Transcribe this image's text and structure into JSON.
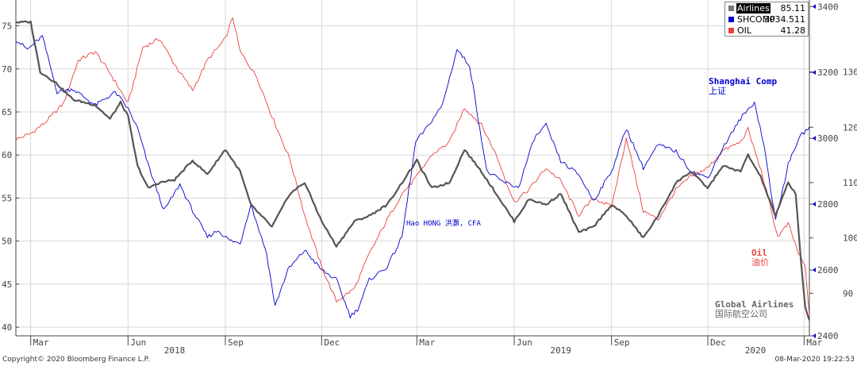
{
  "footer": {
    "copyright": "Copyright© 2020 Bloomberg Finance L.P.",
    "timestamp": "08-Mar-2020 19:22:53"
  },
  "legend": {
    "items": [
      {
        "name": "Airlines",
        "value": "85.11",
        "color": "#777777",
        "highlight": true
      },
      {
        "name": "SHCOMP",
        "value": "3034.511",
        "color": "#0000cc"
      },
      {
        "name": "OIL",
        "value": "41.28",
        "color": "#e8403f"
      }
    ]
  },
  "annotations": {
    "shanghai": [
      "Shanghai Comp",
      "上证"
    ],
    "author": "Hao HONG 洪灝, CFA",
    "oil": [
      "Oil",
      "油价"
    ],
    "airlines": [
      "Global Airlines",
      "国际航空公司"
    ]
  },
  "chart_data": {
    "type": "line",
    "x_range": [
      "2018-02-15",
      "2020-03-06"
    ],
    "x_ticks": [
      {
        "date": "2018-03-01",
        "label": "Mar"
      },
      {
        "date": "2018-06-01",
        "label": "Jun"
      },
      {
        "date": "2018-09-01",
        "label": "Sep"
      },
      {
        "date": "2018-12-01",
        "label": "Dec"
      },
      {
        "date": "2019-03-01",
        "label": "Mar"
      },
      {
        "date": "2019-06-01",
        "label": "Jun"
      },
      {
        "date": "2019-09-01",
        "label": "Sep"
      },
      {
        "date": "2019-12-01",
        "label": "Dec"
      },
      {
        "date": "2020-03-01",
        "label": "Mar"
      }
    ],
    "year_labels": [
      {
        "date": "2018-07-15",
        "label": "2018"
      },
      {
        "date": "2019-07-15",
        "label": "2019"
      },
      {
        "date": "2020-01-15",
        "label": "2020"
      }
    ],
    "axes": {
      "left": {
        "min": 39,
        "max": 78,
        "ticks": [
          40,
          45,
          50,
          55,
          60,
          65,
          70,
          75
        ]
      },
      "right_outer": {
        "min": 2400,
        "max": 3420,
        "ticks": [
          2400,
          2600,
          2800,
          3000,
          3200,
          3400
        ]
      },
      "right_inner": {
        "min": 82.3,
        "max": 143,
        "ticks": [
          90,
          100,
          110,
          120,
          130
        ]
      }
    },
    "grid": true,
    "series": [
      {
        "name": "OIL",
        "axis": "left",
        "color": "#e8403f",
        "points": [
          [
            "2018-02-15",
            61.8
          ],
          [
            "2018-03-01",
            62.5
          ],
          [
            "2018-03-15",
            63.8
          ],
          [
            "2018-04-01",
            66.0
          ],
          [
            "2018-04-15",
            71.0
          ],
          [
            "2018-05-01",
            72.0
          ],
          [
            "2018-05-15",
            69.5
          ],
          [
            "2018-06-01",
            66.0
          ],
          [
            "2018-06-15",
            72.5
          ],
          [
            "2018-07-01",
            73.5
          ],
          [
            "2018-07-15",
            70.5
          ],
          [
            "2018-08-01",
            67.5
          ],
          [
            "2018-08-15",
            71.0
          ],
          [
            "2018-09-01",
            73.5
          ],
          [
            "2018-09-08",
            76.0
          ],
          [
            "2018-09-15",
            72.0
          ],
          [
            "2018-10-01",
            69.0
          ],
          [
            "2018-10-15",
            64.5
          ],
          [
            "2018-11-01",
            59.5
          ],
          [
            "2018-11-15",
            53.0
          ],
          [
            "2018-12-01",
            47.0
          ],
          [
            "2018-12-15",
            43.0
          ],
          [
            "2019-01-01",
            44.5
          ],
          [
            "2019-01-15",
            48.5
          ],
          [
            "2019-02-01",
            52.5
          ],
          [
            "2019-02-15",
            55.5
          ],
          [
            "2019-03-01",
            57.5
          ],
          [
            "2019-03-15",
            60.0
          ],
          [
            "2019-04-01",
            61.5
          ],
          [
            "2019-04-15",
            65.5
          ],
          [
            "2019-05-01",
            63.5
          ],
          [
            "2019-05-15",
            60.0
          ],
          [
            "2019-06-01",
            54.5
          ],
          [
            "2019-06-15",
            56.0
          ],
          [
            "2019-07-01",
            58.5
          ],
          [
            "2019-07-15",
            57.0
          ],
          [
            "2019-08-01",
            53.0
          ],
          [
            "2019-08-15",
            55.0
          ],
          [
            "2019-09-01",
            54.0
          ],
          [
            "2019-09-15",
            62.0
          ],
          [
            "2019-10-01",
            53.5
          ],
          [
            "2019-10-15",
            52.5
          ],
          [
            "2019-11-01",
            56.0
          ],
          [
            "2019-11-15",
            57.5
          ],
          [
            "2019-12-01",
            58.5
          ],
          [
            "2019-12-15",
            60.5
          ],
          [
            "2020-01-01",
            61.5
          ],
          [
            "2020-01-08",
            63.0
          ],
          [
            "2020-01-22",
            57.5
          ],
          [
            "2020-02-05",
            50.5
          ],
          [
            "2020-02-15",
            52.0
          ],
          [
            "2020-02-25",
            48.5
          ],
          [
            "2020-03-02",
            47.0
          ],
          [
            "2020-03-06",
            41.3
          ]
        ]
      },
      {
        "name": "SHCOMP",
        "axis": "right_outer",
        "color": "#0000cc",
        "points": [
          [
            "2018-02-15",
            3300
          ],
          [
            "2018-02-26",
            3270
          ],
          [
            "2018-03-12",
            3310
          ],
          [
            "2018-03-26",
            3140
          ],
          [
            "2018-04-10",
            3150
          ],
          [
            "2018-05-01",
            3100
          ],
          [
            "2018-05-20",
            3140
          ],
          [
            "2018-06-01",
            3090
          ],
          [
            "2018-06-10",
            3030
          ],
          [
            "2018-06-20",
            2920
          ],
          [
            "2018-07-05",
            2780
          ],
          [
            "2018-07-20",
            2860
          ],
          [
            "2018-08-01",
            2780
          ],
          [
            "2018-08-15",
            2700
          ],
          [
            "2018-08-25",
            2720
          ],
          [
            "2018-09-05",
            2690
          ],
          [
            "2018-09-15",
            2680
          ],
          [
            "2018-09-25",
            2800
          ],
          [
            "2018-10-10",
            2650
          ],
          [
            "2018-10-18",
            2490
          ],
          [
            "2018-10-30",
            2600
          ],
          [
            "2018-11-15",
            2660
          ],
          [
            "2018-12-01",
            2600
          ],
          [
            "2018-12-15",
            2570
          ],
          [
            "2018-12-28",
            2460
          ],
          [
            "2019-01-04",
            2480
          ],
          [
            "2019-01-15",
            2570
          ],
          [
            "2019-02-01",
            2610
          ],
          [
            "2019-02-15",
            2700
          ],
          [
            "2019-02-28",
            2990
          ],
          [
            "2019-03-10",
            3030
          ],
          [
            "2019-03-25",
            3100
          ],
          [
            "2019-04-08",
            3270
          ],
          [
            "2019-04-20",
            3220
          ],
          [
            "2019-05-06",
            2900
          ],
          [
            "2019-05-20",
            2870
          ],
          [
            "2019-06-05",
            2850
          ],
          [
            "2019-06-20",
            3000
          ],
          [
            "2019-07-01",
            3040
          ],
          [
            "2019-07-15",
            2930
          ],
          [
            "2019-08-01",
            2890
          ],
          [
            "2019-08-15",
            2810
          ],
          [
            "2019-09-01",
            2900
          ],
          [
            "2019-09-15",
            3030
          ],
          [
            "2019-10-01",
            2910
          ],
          [
            "2019-10-15",
            2980
          ],
          [
            "2019-11-01",
            2960
          ],
          [
            "2019-11-15",
            2900
          ],
          [
            "2019-12-01",
            2880
          ],
          [
            "2019-12-15",
            2970
          ],
          [
            "2020-01-01",
            3060
          ],
          [
            "2020-01-14",
            3110
          ],
          [
            "2020-01-23",
            2980
          ],
          [
            "2020-02-03",
            2750
          ],
          [
            "2020-02-15",
            2920
          ],
          [
            "2020-02-25",
            3000
          ],
          [
            "2020-03-06",
            3034.5
          ]
        ]
      },
      {
        "name": "Airlines",
        "axis": "right_inner",
        "color": "#555555",
        "points": [
          [
            "2018-02-15",
            139.0
          ],
          [
            "2018-03-01",
            139.0
          ],
          [
            "2018-03-10",
            130.0
          ],
          [
            "2018-03-25",
            128.0
          ],
          [
            "2018-04-10",
            125.0
          ],
          [
            "2018-05-01",
            124.0
          ],
          [
            "2018-05-15",
            121.5
          ],
          [
            "2018-05-25",
            124.5
          ],
          [
            "2018-06-01",
            122.0
          ],
          [
            "2018-06-10",
            113.0
          ],
          [
            "2018-06-20",
            109.0
          ],
          [
            "2018-07-01",
            110.0
          ],
          [
            "2018-07-15",
            110.5
          ],
          [
            "2018-08-01",
            114.0
          ],
          [
            "2018-08-15",
            111.5
          ],
          [
            "2018-09-01",
            116.0
          ],
          [
            "2018-09-15",
            112.0
          ],
          [
            "2018-09-25",
            106.0
          ],
          [
            "2018-10-15",
            102.0
          ],
          [
            "2018-11-01",
            108.0
          ],
          [
            "2018-11-15",
            110.0
          ],
          [
            "2018-12-01",
            103.0
          ],
          [
            "2018-12-15",
            98.5
          ],
          [
            "2019-01-01",
            103.0
          ],
          [
            "2019-01-15",
            104.0
          ],
          [
            "2019-02-01",
            106.0
          ],
          [
            "2019-02-15",
            110.0
          ],
          [
            "2019-03-01",
            114.0
          ],
          [
            "2019-03-15",
            109.0
          ],
          [
            "2019-04-01",
            110.0
          ],
          [
            "2019-04-15",
            116.0
          ],
          [
            "2019-05-01",
            112.0
          ],
          [
            "2019-05-15",
            108.0
          ],
          [
            "2019-06-01",
            103.0
          ],
          [
            "2019-06-15",
            107.0
          ],
          [
            "2019-07-01",
            106.0
          ],
          [
            "2019-07-15",
            108.0
          ],
          [
            "2019-08-01",
            101.0
          ],
          [
            "2019-08-15",
            102.0
          ],
          [
            "2019-09-01",
            106.0
          ],
          [
            "2019-09-15",
            104.0
          ],
          [
            "2019-10-01",
            100.0
          ],
          [
            "2019-10-15",
            104.0
          ],
          [
            "2019-11-01",
            110.0
          ],
          [
            "2019-11-15",
            112.0
          ],
          [
            "2019-12-01",
            109.0
          ],
          [
            "2019-12-15",
            113.0
          ],
          [
            "2020-01-01",
            112.0
          ],
          [
            "2020-01-08",
            115.0
          ],
          [
            "2020-01-20",
            111.0
          ],
          [
            "2020-02-03",
            104.0
          ],
          [
            "2020-02-15",
            110.0
          ],
          [
            "2020-02-22",
            108.0
          ],
          [
            "2020-02-27",
            96.0
          ],
          [
            "2020-03-02",
            87.5
          ],
          [
            "2020-03-06",
            85.1
          ]
        ]
      }
    ]
  }
}
